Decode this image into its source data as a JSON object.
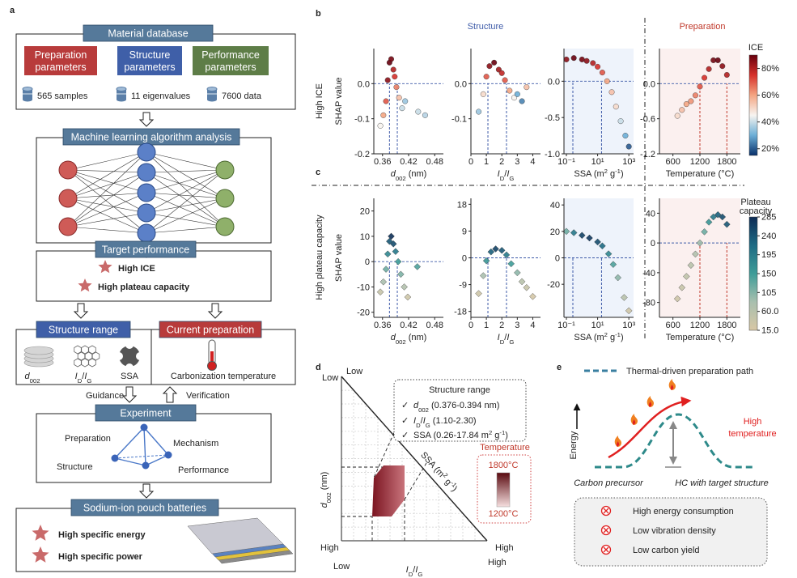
{
  "panel_a": {
    "label": "a",
    "database": {
      "title": "Material database",
      "params": [
        [
          "Preparation",
          "parameters"
        ],
        [
          "Structure",
          "parameters"
        ],
        [
          "Performance",
          "parameters"
        ]
      ],
      "stats": [
        "565 samples",
        "11 eigenvalues",
        "7600 data"
      ]
    },
    "ml": {
      "title": "Machine learning algorithm analysis"
    },
    "target": {
      "title": "Target performance",
      "items": [
        "High ICE",
        "High plateau capacity"
      ]
    },
    "structure": {
      "title": "Structure range",
      "items": [
        [
          {
            "i": "d"
          },
          {
            "sub": "002"
          }
        ],
        [
          {
            "i": "I"
          },
          {
            "sub": "D"
          },
          "/",
          {
            "i": "I"
          },
          {
            "sub": "G"
          }
        ],
        [
          "SSA"
        ]
      ]
    },
    "preparation": {
      "title": "Current preparation",
      "item": "Carbonization temperature"
    },
    "guidance": "Guidance",
    "verification": "Verification",
    "experiment": {
      "title": "Experiment",
      "vertices": [
        "Preparation",
        "Mechanism",
        "Structure",
        "Performance"
      ]
    },
    "battery": {
      "title": "Sodium-ion pouch batteries",
      "items": [
        "High specific energy",
        "High specific power"
      ]
    }
  },
  "panel_bc": {
    "labels": [
      "b",
      "c"
    ],
    "columns": [
      "Structure",
      "Preparation"
    ],
    "rows": [
      "High ICE",
      "High plateau capacity"
    ]
  },
  "chart_data": [
    {
      "type": "scatter",
      "marker": "circle",
      "y_label": "SHAP value",
      "x_label": [
        {
          "i": "d"
        },
        {
          "sub": "002"
        },
        " (nm)"
      ],
      "x": [
        0.355,
        0.362,
        0.368,
        0.372,
        0.376,
        0.38,
        0.385,
        0.388,
        0.392,
        0.398,
        0.405,
        0.412,
        0.442,
        0.458
      ],
      "values": [
        -0.12,
        -0.09,
        -0.05,
        0.01,
        0.06,
        0.07,
        0.04,
        0.02,
        -0.01,
        -0.04,
        -0.07,
        -0.05,
        -0.08,
        -0.09
      ],
      "color_values": [
        45,
        60,
        70,
        85,
        90,
        88,
        80,
        75,
        65,
        55,
        40,
        35,
        40,
        38
      ],
      "xlim": [
        0.34,
        0.5
      ],
      "ylim": [
        -0.2,
        0.1
      ],
      "xticks": [
        0.36,
        0.42,
        0.48
      ],
      "yticks": [
        -0.2,
        -0.1,
        {
          "value": 0,
          "label": "0.0"
        }
      ],
      "hlines": [
        0
      ],
      "thresholds": [
        0.376,
        0.394
      ],
      "threshold_color": "#3d5aa8"
    },
    {
      "type": "scatter",
      "marker": "circle",
      "x_label": [
        {
          "i": "I"
        },
        {
          "sub": "D"
        },
        "/",
        {
          "i": "I"
        },
        {
          "sub": "G"
        }
      ],
      "x": [
        0.5,
        0.8,
        1.0,
        1.2,
        1.5,
        1.8,
        2.0,
        2.2,
        2.5,
        2.8,
        3.0,
        3.3,
        3.6
      ],
      "values": [
        -0.08,
        -0.03,
        0.02,
        0.05,
        0.06,
        0.04,
        0.03,
        0.01,
        -0.02,
        -0.04,
        -0.03,
        -0.05,
        -0.01
      ],
      "color_values": [
        35,
        50,
        70,
        85,
        90,
        82,
        78,
        70,
        60,
        45,
        30,
        25,
        55
      ],
      "xlim": [
        0,
        4.5
      ],
      "ylim": [
        -0.2,
        0.1
      ],
      "xticks": [
        0,
        1,
        2,
        3,
        4
      ],
      "yticks": [
        -0.1,
        {
          "value": 0,
          "label": "0.0"
        }
      ],
      "hlines": [
        0
      ],
      "thresholds": [
        1.1,
        2.3
      ],
      "threshold_color": "#3d5aa8"
    },
    {
      "type": "scatter",
      "marker": "circle",
      "xscale": "log",
      "background": "#eef3fb",
      "x_label": [
        "SSA (m",
        {
          "sup": "2"
        },
        " g",
        {
          "sup": "-1"
        },
        ")"
      ],
      "x": [
        0.1,
        0.3,
        1,
        2,
        5,
        10,
        20,
        40,
        80,
        150,
        300,
        600,
        1000
      ],
      "values": [
        0.3,
        0.32,
        0.3,
        0.28,
        0.25,
        0.2,
        0.12,
        0.0,
        -0.15,
        -0.35,
        -0.55,
        -0.75,
        -0.9
      ],
      "color_values": [
        85,
        90,
        88,
        85,
        80,
        75,
        70,
        60,
        55,
        50,
        40,
        30,
        20
      ],
      "xlim": [
        0.07,
        2000
      ],
      "ylim": [
        -1,
        0.45
      ],
      "xticks": [
        {
          "value": 0.1,
          "label": "10⁻¹"
        },
        {
          "value": 10,
          "label": "10¹"
        },
        {
          "value": 1000,
          "label": "10³"
        }
      ],
      "yticks": [
        {
          "value": -1,
          "label": "-1.0"
        },
        -0.5,
        {
          "value": 0,
          "label": "0.0"
        }
      ],
      "hlines": [
        0
      ],
      "thresholds": [
        0.26,
        17.84
      ],
      "threshold_color": "#3d5aa8"
    },
    {
      "type": "scatter",
      "marker": "circle",
      "background": "#fbf0ef",
      "x_label": "Temperature (°C)",
      "x": [
        700,
        800,
        900,
        1000,
        1100,
        1200,
        1300,
        1400,
        1500,
        1600,
        1700,
        1800
      ],
      "values": [
        -0.55,
        -0.45,
        -0.35,
        -0.3,
        -0.2,
        -0.05,
        0.1,
        0.25,
        0.4,
        0.4,
        0.3,
        0.15
      ],
      "color_values": [
        50,
        55,
        60,
        62,
        65,
        70,
        75,
        80,
        88,
        90,
        85,
        80
      ],
      "xlim": [
        300,
        2100
      ],
      "ylim": [
        -1.2,
        0.6
      ],
      "xticks": [
        600,
        1200,
        1800
      ],
      "yticks": [
        -1.2,
        -0.6,
        {
          "value": 0,
          "label": "0.0"
        }
      ],
      "hlines": [
        0
      ],
      "thresholds": [
        1200,
        1800
      ],
      "threshold_color": "#c0392b"
    },
    {
      "type": "scatter",
      "marker": "diamond",
      "y_label": "SHAP value",
      "x_label": [
        {
          "i": "d"
        },
        {
          "sub": "002"
        },
        " (nm)"
      ],
      "x": [
        0.355,
        0.362,
        0.368,
        0.372,
        0.376,
        0.38,
        0.385,
        0.39,
        0.396,
        0.402,
        0.41,
        0.418,
        0.44
      ],
      "values": [
        -12,
        -8,
        -3,
        3,
        8,
        10,
        7,
        4,
        0,
        -5,
        -10,
        -14,
        -2
      ],
      "color_values": [
        40,
        80,
        120,
        180,
        240,
        280,
        250,
        200,
        150,
        110,
        70,
        30,
        140
      ],
      "xlim": [
        0.34,
        0.5
      ],
      "ylim": [
        -22,
        25
      ],
      "xticks": [
        0.36,
        0.42,
        0.48
      ],
      "yticks": [
        -20,
        -10,
        0,
        10,
        20
      ],
      "hlines": [
        0
      ],
      "thresholds": [
        0.376,
        0.394
      ],
      "threshold_color": "#3d5aa8"
    },
    {
      "type": "scatter",
      "marker": "diamond",
      "x_label": [
        {
          "i": "I"
        },
        {
          "sub": "D"
        },
        "/",
        {
          "i": "I"
        },
        {
          "sub": "G"
        }
      ],
      "x": [
        0.5,
        0.8,
        1.0,
        1.3,
        1.6,
        2.0,
        2.3,
        2.6,
        3.0,
        3.3,
        3.6,
        4.0
      ],
      "values": [
        -12,
        -6,
        -1,
        2,
        3,
        2.5,
        1,
        -2,
        -5,
        -8,
        -10,
        -13
      ],
      "color_values": [
        30,
        80,
        160,
        230,
        260,
        240,
        200,
        150,
        100,
        60,
        40,
        20
      ],
      "xlim": [
        0,
        4.5
      ],
      "ylim": [
        -20,
        20
      ],
      "xticks": [
        0,
        1,
        2,
        3,
        4
      ],
      "yticks": [
        -18,
        -9,
        0,
        9,
        18
      ],
      "hlines": [
        0
      ],
      "thresholds": [
        1.1,
        2.3
      ],
      "threshold_color": "#3d5aa8"
    },
    {
      "type": "scatter",
      "marker": "diamond",
      "xscale": "log",
      "background": "#eef3fb",
      "x_label": [
        "SSA (m",
        {
          "sup": "2"
        },
        " g",
        {
          "sup": "-1"
        },
        ")"
      ],
      "x": [
        0.1,
        0.3,
        1,
        3,
        10,
        20,
        50,
        100,
        200,
        500,
        1000
      ],
      "values": [
        20,
        19,
        17,
        15,
        12,
        9,
        3,
        -5,
        -15,
        -30,
        -40
      ],
      "color_values": [
        120,
        200,
        260,
        270,
        250,
        220,
        180,
        140,
        100,
        60,
        30
      ],
      "xlim": [
        0.07,
        2000
      ],
      "ylim": [
        -45,
        45
      ],
      "xticks": [
        {
          "value": 0.1,
          "label": "10⁻¹"
        },
        {
          "value": 10,
          "label": "10¹"
        },
        {
          "value": 1000,
          "label": "10³"
        }
      ],
      "yticks": [
        -20,
        0,
        20,
        40
      ],
      "hlines": [
        0
      ],
      "thresholds": [
        0.26,
        17.84
      ],
      "threshold_color": "#3d5aa8"
    },
    {
      "type": "scatter",
      "marker": "diamond",
      "background": "#fbf0ef",
      "x_label": "Temperature (°C)",
      "x": [
        700,
        800,
        900,
        1000,
        1100,
        1200,
        1300,
        1400,
        1500,
        1600,
        1700,
        1800
      ],
      "values": [
        -75,
        -60,
        -45,
        -30,
        -15,
        0,
        15,
        28,
        35,
        38,
        35,
        25
      ],
      "color_values": [
        30,
        40,
        50,
        60,
        70,
        90,
        120,
        160,
        200,
        230,
        250,
        240
      ],
      "xlim": [
        300,
        2100
      ],
      "ylim": [
        -100,
        60
      ],
      "xticks": [
        600,
        1200,
        1800
      ],
      "yticks": [
        -80,
        -40,
        0,
        40
      ],
      "hlines": [
        0
      ],
      "thresholds": [
        1200,
        1800
      ],
      "threshold_color": "#c0392b"
    },
    {
      "type": "colorbar",
      "title": [
        "ICE"
      ],
      "clim": [
        15,
        90
      ],
      "colors": [
        "#08306b",
        "#6baed6",
        "#f7f4f0",
        "#f4a582",
        "#d6302a",
        "#67000d"
      ],
      "ticks": [
        {
          "value": 20,
          "label": "20%"
        },
        {
          "value": 40,
          "label": "40%"
        },
        {
          "value": 60,
          "label": "60%"
        },
        {
          "value": 80,
          "label": "80%"
        }
      ]
    },
    {
      "type": "colorbar",
      "title": [
        "Plateau",
        "capacity"
      ],
      "clim": [
        15,
        285
      ],
      "colors": [
        "#d8c7a5",
        "#a8bfae",
        "#3e9c98",
        "#1e6b84",
        "#0d2b55"
      ],
      "ticks": [
        285,
        240,
        195,
        150,
        105,
        {
          "value": 60,
          "label": "60.0"
        },
        {
          "value": 15,
          "label": "15.0"
        }
      ]
    }
  ],
  "panel_d": {
    "label": "d",
    "ends": [
      "Low",
      "Low",
      "High",
      "Low",
      "High",
      "High"
    ],
    "y_label": [
      {
        "i": "d"
      },
      {
        "sub": "002"
      },
      " (nm)"
    ],
    "x_label": [
      {
        "i": "I"
      },
      {
        "sub": "D"
      },
      "/",
      {
        "i": "I"
      },
      {
        "sub": "G"
      }
    ],
    "diag_label": [
      "SSA (m",
      {
        "sup": "2"
      },
      " g",
      {
        "sup": "-1"
      },
      ")"
    ],
    "legend": {
      "title": "Structure range",
      "check": "✓",
      "items": [
        [
          {
            "i": "d"
          },
          {
            "sub": "002"
          },
          " (0.376-0.394 nm)"
        ],
        [
          {
            "i": "I"
          },
          {
            "sub": "D"
          },
          "/",
          {
            "i": "I"
          },
          {
            "sub": "G"
          },
          " (1.10-2.30)"
        ],
        [
          "SSA (0.26-17.84 m",
          {
            "sup": "2"
          },
          " g",
          {
            "sup": "-1"
          },
          ")"
        ]
      ]
    },
    "temperature": {
      "title": "Temperature",
      "high": "1800°C",
      "low": "1200°C"
    }
  },
  "panel_e": {
    "label": "e",
    "legend": "Thermal-driven preparation path",
    "y_label": "Energy",
    "high_temperature": [
      "High",
      "temperature"
    ],
    "start": "Carbon precursor",
    "end": "HC with target structure",
    "issues": [
      "High energy consumption",
      "Low vibration density",
      "Low carbon yield"
    ]
  }
}
